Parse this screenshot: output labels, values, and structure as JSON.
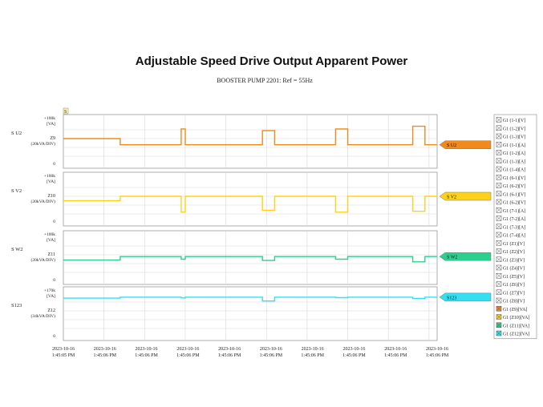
{
  "title": "Adjustable Speed Drive Output Apparent Power",
  "subtitle": "BOOSTER PUMP 2201: Ref = 55Hz",
  "corner_marker": "S",
  "colors": {
    "grid": "#d8d8d8",
    "frame": "#9a9a9a",
    "orange": "#f08a1c",
    "yellow": "#ffd21a",
    "green": "#2dcf8e",
    "cyan": "#34e0ee"
  },
  "chart_data": [
    {
      "type": "line",
      "name": "S U2",
      "left_label": "S U2",
      "channel": "Z9",
      "scale": "(20kVA/DIV)",
      "top_tick": "+100k",
      "unit": "[VA]",
      "bottom_tick": "0",
      "color_key": "orange",
      "ylim": [
        0,
        100
      ],
      "x": [
        0,
        1.4,
        1.4,
        2.9,
        2.9,
        3.0,
        3.0,
        4.9,
        4.9,
        5.2,
        5.2,
        6.7,
        6.7,
        7.0,
        7.0,
        8.6,
        8.6,
        8.9,
        8.9,
        9.2
      ],
      "values": [
        60,
        60,
        46,
        46,
        82,
        82,
        46,
        46,
        78,
        78,
        46,
        46,
        82,
        82,
        46,
        46,
        88,
        88,
        46,
        46
      ]
    },
    {
      "type": "line",
      "name": "S V2",
      "left_label": "S V2",
      "channel": "Z10",
      "scale": "(20kVA/DIV)",
      "top_tick": "+100k",
      "unit": "[VA]",
      "bottom_tick": "0",
      "color_key": "yellow",
      "ylim": [
        0,
        100
      ],
      "x": [
        0,
        1.4,
        1.4,
        2.9,
        2.9,
        3.0,
        3.0,
        4.9,
        4.9,
        5.2,
        5.2,
        6.7,
        6.7,
        7.0,
        7.0,
        8.6,
        8.6,
        8.9,
        8.9,
        9.2
      ],
      "values": [
        50,
        50,
        60,
        60,
        24,
        24,
        60,
        60,
        28,
        28,
        60,
        60,
        24,
        24,
        60,
        60,
        26,
        26,
        60,
        60
      ]
    },
    {
      "type": "line",
      "name": "S W2",
      "left_label": "S W2",
      "channel": "Z11",
      "scale": "(20kVA/DIV)",
      "top_tick": "+100k",
      "unit": "[VA]",
      "bottom_tick": "0",
      "color_key": "green",
      "ylim": [
        0,
        100
      ],
      "x": [
        0,
        1.4,
        1.4,
        2.9,
        2.9,
        3.0,
        3.0,
        4.9,
        4.9,
        5.2,
        5.2,
        6.7,
        6.7,
        7.0,
        7.0,
        8.6,
        8.6,
        8.9,
        8.9,
        9.2
      ],
      "values": [
        48,
        48,
        56,
        56,
        50,
        50,
        56,
        56,
        47,
        47,
        56,
        56,
        50,
        50,
        56,
        56,
        44,
        44,
        56,
        56
      ]
    },
    {
      "type": "line",
      "name": "S123",
      "left_label": "S123",
      "channel": "Z12",
      "scale": "(34kVA/DIV)",
      "top_tick": "+170k",
      "unit": "[VA]",
      "bottom_tick": "0",
      "color_key": "cyan",
      "ylim": [
        0,
        170
      ],
      "x": [
        0,
        1.4,
        1.4,
        2.9,
        2.9,
        3.0,
        3.0,
        4.9,
        4.9,
        5.2,
        5.2,
        6.7,
        6.7,
        7.0,
        7.0,
        8.6,
        8.6,
        8.9,
        8.9,
        9.2
      ],
      "values": [
        151,
        151,
        155,
        155,
        152,
        152,
        155,
        155,
        140,
        140,
        155,
        155,
        153,
        153,
        155,
        155,
        150,
        150,
        155,
        155
      ]
    }
  ],
  "x_axis": {
    "divisions": 9.2,
    "tick_labels": [
      [
        "2023-10-16",
        "1:45:05 PM"
      ],
      [
        "2023-10-16",
        "1:45:06 PM"
      ],
      [
        "2023-10-16",
        "1:45:06 PM"
      ],
      [
        "2023-10-16",
        "1:45:06 PM"
      ],
      [
        "2023-10-16",
        "1:45:06 PM"
      ],
      [
        "2023-10-16",
        "1:45:06 PM"
      ],
      [
        "2023-10-16",
        "1:45:06 PM"
      ],
      [
        "2023-10-16",
        "1:45:06 PM"
      ],
      [
        "2023-10-16",
        "1:45:06 PM"
      ],
      [
        "2023-10-16",
        "1:45:06 PM"
      ]
    ]
  },
  "legend": {
    "placement": "right",
    "items": [
      {
        "label": "G1 (1-1)[V]",
        "swatch": "none"
      },
      {
        "label": "G1 (1-2)[V]",
        "swatch": "none"
      },
      {
        "label": "G1 (1-3)[V]",
        "swatch": "none"
      },
      {
        "label": "G1 (1-1)[A]",
        "swatch": "none"
      },
      {
        "label": "G1 (1-2)[A]",
        "swatch": "none"
      },
      {
        "label": "G1 (1-3)[A]",
        "swatch": "none"
      },
      {
        "label": "G1 (1-4)[A]",
        "swatch": "none"
      },
      {
        "label": "G1 (6-1)[V]",
        "swatch": "none"
      },
      {
        "label": "G1 (6-2)[V]",
        "swatch": "none"
      },
      {
        "label": "G1 (6-1)[V]",
        "swatch": "none"
      },
      {
        "label": "G1 (6-2)[V]",
        "swatch": "none"
      },
      {
        "label": "G1 (7-1)[A]",
        "swatch": "none"
      },
      {
        "label": "G1 (7-2)[A]",
        "swatch": "none"
      },
      {
        "label": "G1 (7-3)[A]",
        "swatch": "none"
      },
      {
        "label": "G1 (7-4)[A]",
        "swatch": "none"
      },
      {
        "label": "G1 (Z1)[V]",
        "swatch": "none"
      },
      {
        "label": "G1 (Z2)[V]",
        "swatch": "none"
      },
      {
        "label": "G1 (Z3)[V]",
        "swatch": "none"
      },
      {
        "label": "G1 (Z4)[V]",
        "swatch": "none"
      },
      {
        "label": "G1 (Z5)[V]",
        "swatch": "none"
      },
      {
        "label": "G1 (Z6)[V]",
        "swatch": "none"
      },
      {
        "label": "G1 (Z7)[V]",
        "swatch": "none"
      },
      {
        "label": "G1 (Z8)[V]",
        "swatch": "none"
      },
      {
        "label": "G1 (Z9)[VA]",
        "swatch": "orange"
      },
      {
        "label": "G1 (Z10)[VA]",
        "swatch": "yellow"
      },
      {
        "label": "G1 (Z11)[VA]",
        "swatch": "green"
      },
      {
        "label": "G1 (Z12)[VA]",
        "swatch": "cyan"
      }
    ]
  }
}
